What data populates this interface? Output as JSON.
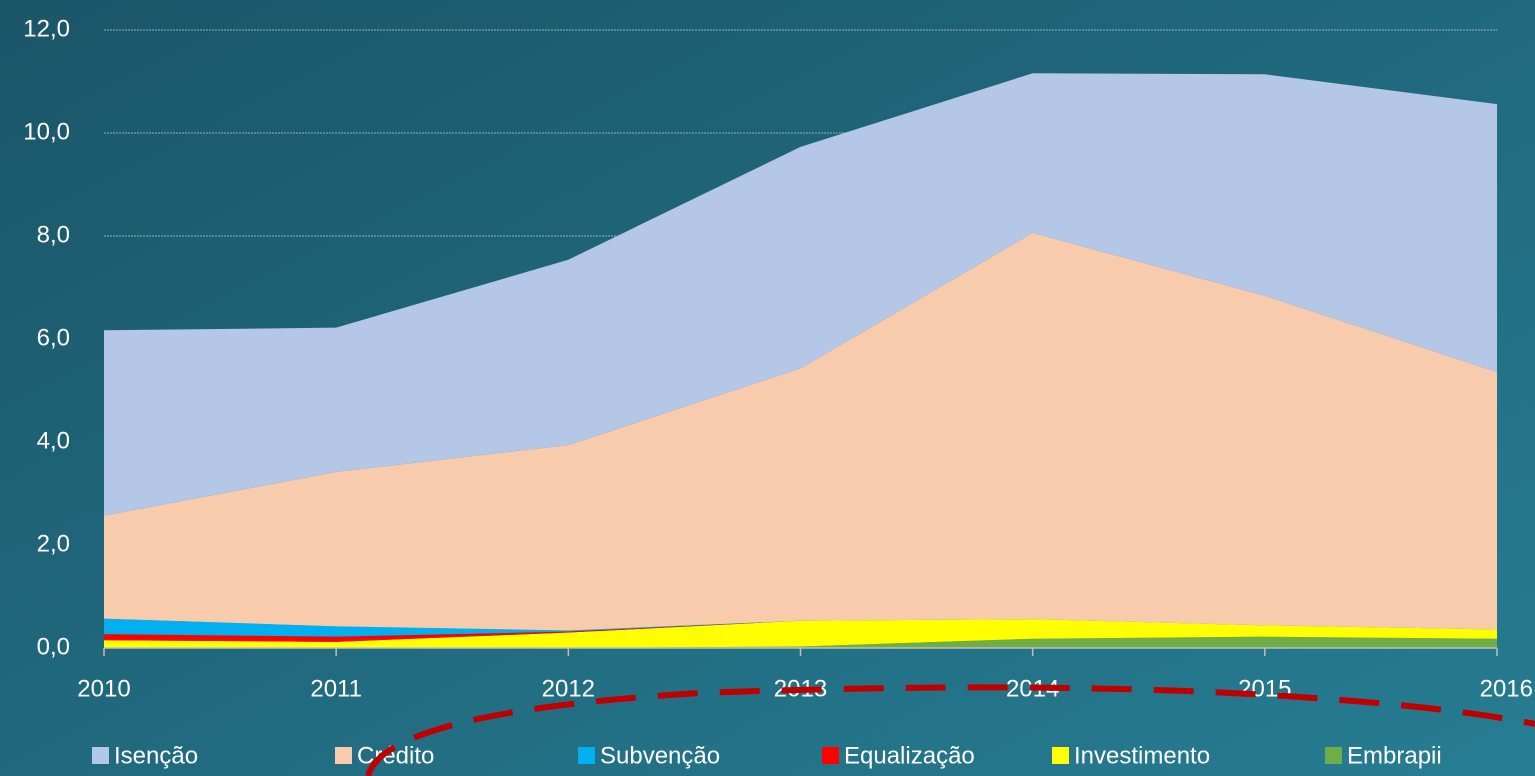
{
  "chart_data": {
    "type": "stacked_area",
    "categories": [
      "2010",
      "2011",
      "2012",
      "2013",
      "2014",
      "2015",
      "2016"
    ],
    "series": [
      {
        "name": "Embrapii",
        "color": "#70ad47",
        "values": [
          0,
          0,
          0,
          0.03,
          0.18,
          0.22,
          0.18
        ]
      },
      {
        "name": "Investimento",
        "color": "#ffff00",
        "values": [
          0.15,
          0.12,
          0.3,
          0.5,
          0.38,
          0.22,
          0.18
        ]
      },
      {
        "name": "Equalização",
        "color": "#ff0000",
        "values": [
          0.12,
          0.1,
          0.02,
          0,
          0,
          0,
          0
        ]
      },
      {
        "name": "Subvenção",
        "color": "#00b0f0",
        "values": [
          0.3,
          0.2,
          0.02,
          0,
          0,
          0,
          0
        ]
      },
      {
        "name": "Crédito",
        "color": "#f8cbad",
        "values": [
          2.0,
          3.0,
          3.6,
          4.9,
          7.5,
          6.4,
          5.0
        ]
      },
      {
        "name": "Isenção",
        "color": "#b4c7e7",
        "values": [
          3.6,
          2.8,
          3.6,
          4.3,
          3.1,
          4.3,
          5.2
        ]
      }
    ],
    "ylim": [
      0,
      12
    ],
    "yticks": [
      {
        "value": 0,
        "label": "0,0"
      },
      {
        "value": 2,
        "label": "2,0"
      },
      {
        "value": 4,
        "label": "4,0"
      },
      {
        "value": 6,
        "label": "6,0"
      },
      {
        "value": 8,
        "label": "8,0"
      },
      {
        "value": 10,
        "label": "10,0"
      },
      {
        "value": 12,
        "label": "12,0"
      }
    ],
    "grid": true
  }
}
